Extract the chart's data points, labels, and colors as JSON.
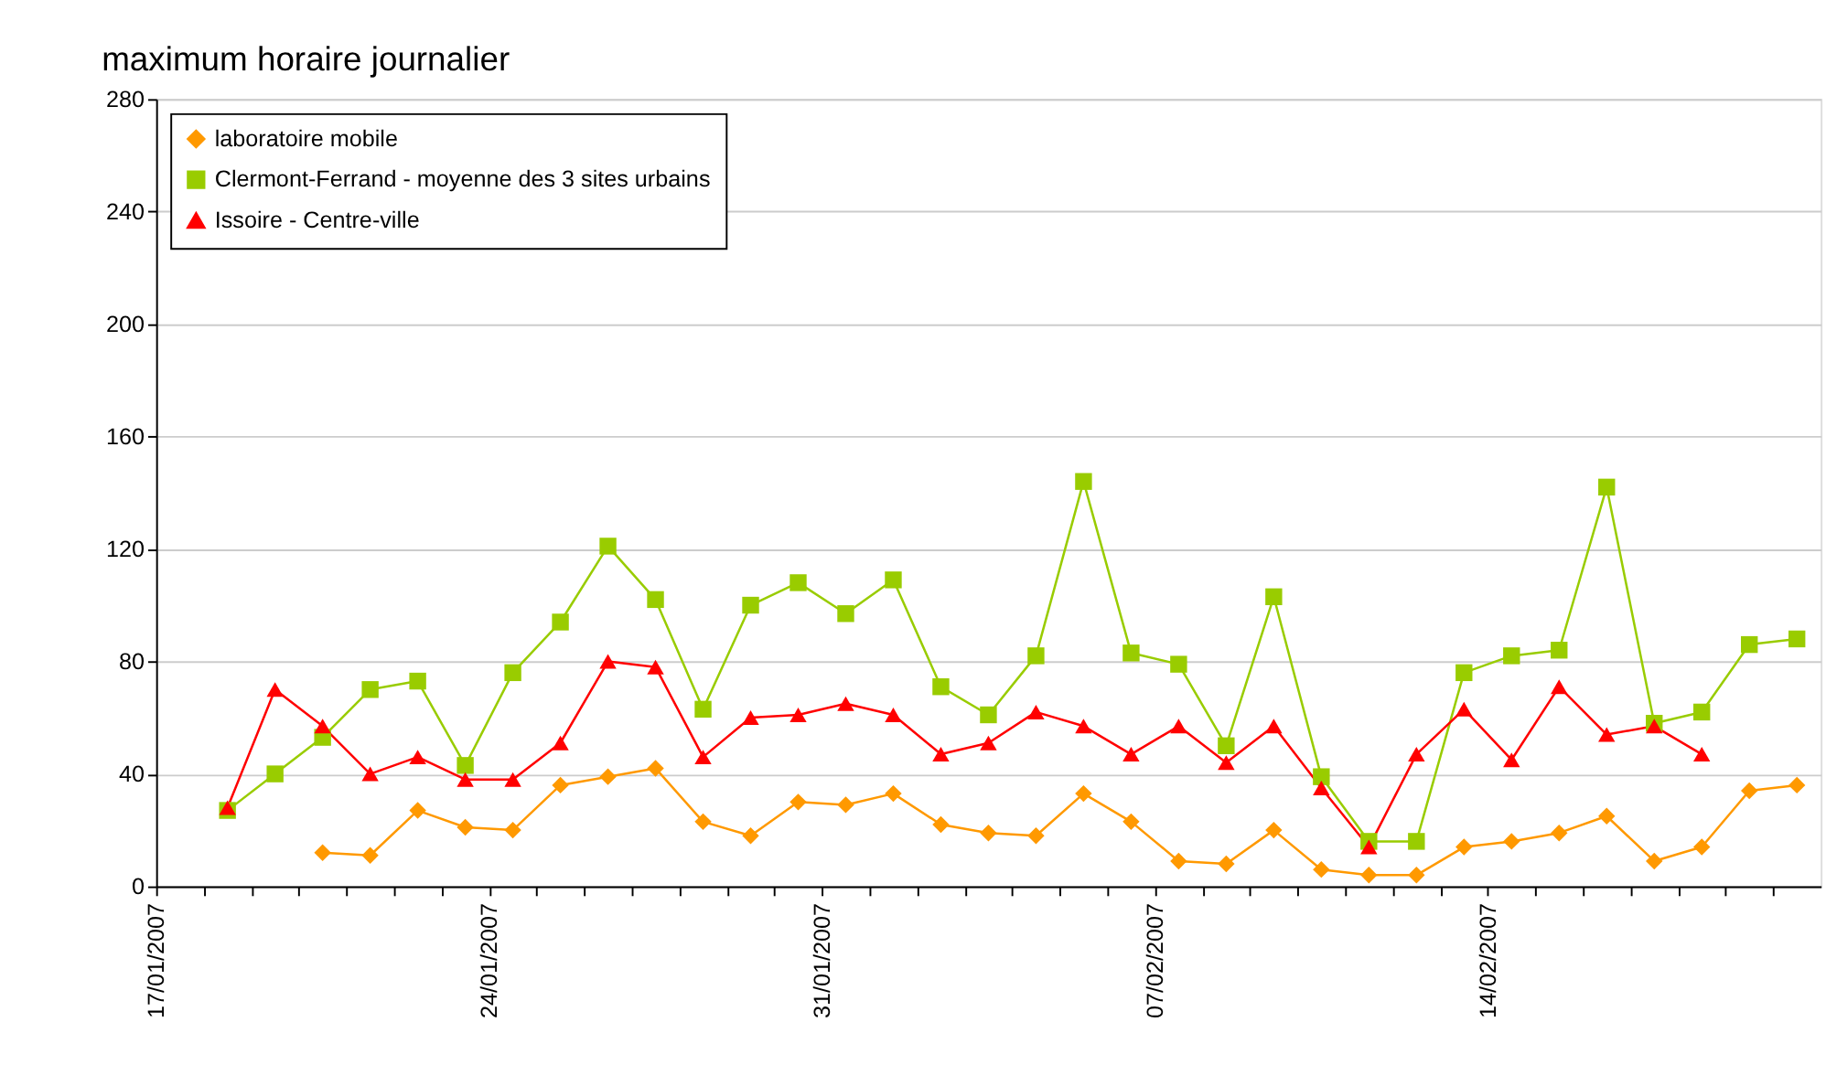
{
  "chart_data": {
    "type": "line",
    "title": "maximum horaire journalier",
    "x": [
      "2007-01-18T12:00",
      "2007-01-19T12:00",
      "2007-01-20T12:00",
      "2007-01-21T12:00",
      "2007-01-22T12:00",
      "2007-01-23T12:00",
      "2007-01-24T12:00",
      "2007-01-25T12:00",
      "2007-01-26T12:00",
      "2007-01-27T12:00",
      "2007-01-28T12:00",
      "2007-01-29T12:00",
      "2007-01-30T12:00",
      "2007-01-31T12:00",
      "2007-02-01T12:00",
      "2007-02-02T12:00",
      "2007-02-03T12:00",
      "2007-02-04T12:00",
      "2007-02-05T12:00",
      "2007-02-06T12:00",
      "2007-02-07T12:00",
      "2007-02-08T12:00",
      "2007-02-09T12:00",
      "2007-02-10T12:00",
      "2007-02-11T12:00",
      "2007-02-12T12:00",
      "2007-02-13T12:00",
      "2007-02-14T12:00",
      "2007-02-15T12:00",
      "2007-02-16T12:00",
      "2007-02-17T12:00",
      "2007-02-18T12:00",
      "2007-02-19T12:00",
      "2007-02-20T12:00"
    ],
    "series": [
      {
        "name": "laboratoire mobile",
        "color": "#ff9900",
        "marker": "diamond",
        "values": [
          null,
          null,
          12,
          11,
          27,
          21,
          20,
          36,
          39,
          42,
          23,
          18,
          30,
          29,
          33,
          22,
          19,
          18,
          33,
          23,
          9,
          8,
          20,
          6,
          4,
          4,
          14,
          16,
          19,
          25,
          9,
          14,
          34,
          36
        ]
      },
      {
        "name": "Clermont-Ferrand - moyenne des 3 sites urbains",
        "color": "#99cc00",
        "marker": "square",
        "values": [
          27,
          40,
          53,
          70,
          73,
          43,
          76,
          94,
          121,
          102,
          63,
          100,
          108,
          97,
          109,
          71,
          61,
          82,
          144,
          83,
          79,
          50,
          103,
          39,
          16,
          16,
          76,
          82,
          84,
          142,
          58,
          62,
          86,
          88
        ]
      },
      {
        "name": "Issoire - Centre-ville",
        "color": "#ff0000",
        "marker": "triangle",
        "values": [
          28,
          70,
          57,
          40,
          46,
          38,
          38,
          51,
          80,
          78,
          46,
          60,
          61,
          65,
          61,
          47,
          51,
          62,
          57,
          47,
          57,
          44,
          57,
          35,
          14,
          47,
          63,
          45,
          71,
          54,
          57,
          47,
          null,
          null
        ]
      }
    ],
    "xlim": [
      "2007-01-17T00:00",
      "2007-02-21T00:00"
    ],
    "xticks": [
      {
        "value": "2007-01-17T00:00",
        "label": "17/01/2007"
      },
      {
        "value": "2007-01-18T00:00",
        "label": null
      },
      {
        "value": "2007-01-19T00:00",
        "label": null
      },
      {
        "value": "2007-01-20T00:00",
        "label": null
      },
      {
        "value": "2007-01-21T00:00",
        "label": null
      },
      {
        "value": "2007-01-22T00:00",
        "label": null
      },
      {
        "value": "2007-01-23T00:00",
        "label": null
      },
      {
        "value": "2007-01-24T00:00",
        "label": "24/01/2007"
      },
      {
        "value": "2007-01-25T00:00",
        "label": null
      },
      {
        "value": "2007-01-26T00:00",
        "label": null
      },
      {
        "value": "2007-01-27T00:00",
        "label": null
      },
      {
        "value": "2007-01-28T00:00",
        "label": null
      },
      {
        "value": "2007-01-29T00:00",
        "label": null
      },
      {
        "value": "2007-01-30T00:00",
        "label": null
      },
      {
        "value": "2007-01-31T00:00",
        "label": "31/01/2007"
      },
      {
        "value": "2007-02-01T00:00",
        "label": null
      },
      {
        "value": "2007-02-02T00:00",
        "label": null
      },
      {
        "value": "2007-02-03T00:00",
        "label": null
      },
      {
        "value": "2007-02-04T00:00",
        "label": null
      },
      {
        "value": "2007-02-05T00:00",
        "label": null
      },
      {
        "value": "2007-02-06T00:00",
        "label": null
      },
      {
        "value": "2007-02-07T00:00",
        "label": "07/02/2007"
      },
      {
        "value": "2007-02-08T00:00",
        "label": null
      },
      {
        "value": "2007-02-09T00:00",
        "label": null
      },
      {
        "value": "2007-02-10T00:00",
        "label": null
      },
      {
        "value": "2007-02-11T00:00",
        "label": null
      },
      {
        "value": "2007-02-12T00:00",
        "label": null
      },
      {
        "value": "2007-02-13T00:00",
        "label": null
      },
      {
        "value": "2007-02-14T00:00",
        "label": "14/02/2007"
      },
      {
        "value": "2007-02-15T00:00",
        "label": null
      },
      {
        "value": "2007-02-16T00:00",
        "label": null
      },
      {
        "value": "2007-02-17T00:00",
        "label": null
      },
      {
        "value": "2007-02-18T00:00",
        "label": null
      },
      {
        "value": "2007-02-19T00:00",
        "label": null
      },
      {
        "value": "2007-02-20T00:00",
        "label": null
      }
    ],
    "ylim": [
      0,
      280
    ],
    "yticks": [
      0,
      40,
      80,
      120,
      160,
      200,
      240,
      280
    ],
    "grid": "y",
    "legend": "top left",
    "line_style": "solid"
  }
}
